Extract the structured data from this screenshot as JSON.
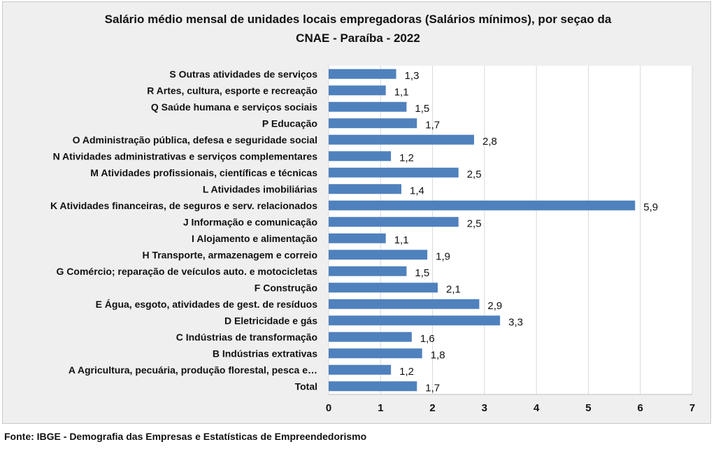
{
  "title_line1": "Salário médio mensal de unidades locais empregadoras (Salários mínimos), por seçao da",
  "title_line2": "CNAE -  Paraíba - 2022",
  "source": "Fonte: IBGE - Demografia das Empresas e Estatísticas de Empreendedorismo",
  "chart_data": {
    "type": "bar",
    "orientation": "horizontal",
    "title": "Salário médio mensal de unidades locais empregadoras (Salários mínimos), por seçao da CNAE -  Paraíba - 2022",
    "xlabel": "",
    "ylabel": "",
    "xlim": [
      0,
      7
    ],
    "xticks": [
      0,
      1,
      2,
      3,
      4,
      5,
      6,
      7
    ],
    "grid": "vertical",
    "bar_color": "#4f81bd",
    "categories": [
      "S Outras atividades de serviços",
      "R Artes, cultura, esporte e recreação",
      "Q Saúde humana e serviços sociais",
      "P Educação",
      "O Administração pública, defesa e seguridade social",
      "N Atividades administrativas e serviços complementares",
      "M Atividades profissionais, científicas e técnicas",
      "L Atividades imobiliárias",
      "K Atividades financeiras, de seguros e serv. relacionados",
      "J Informação e comunicação",
      "I Alojamento e alimentação",
      "H Transporte, armazenagem e correio",
      "G Comércio; reparação de veículos auto. e motocicletas",
      "F Construção",
      "E Água, esgoto, atividades de gest. de resíduos",
      "D Eletricidade e gás",
      "C Indústrias de transformação",
      "B Indústrias extrativas",
      "A Agricultura, pecuária, produção florestal, pesca e…",
      "Total"
    ],
    "values": [
      1.3,
      1.1,
      1.5,
      1.7,
      2.8,
      1.2,
      2.5,
      1.4,
      5.9,
      2.5,
      1.1,
      1.9,
      1.5,
      2.1,
      2.9,
      3.3,
      1.6,
      1.8,
      1.2,
      1.7
    ],
    "value_labels": [
      "1,3",
      "1,1",
      "1,5",
      "1,7",
      "2,8",
      "1,2",
      "2,5",
      "1,4",
      "5,9",
      "2,5",
      "1,1",
      "1,9",
      "1,5",
      "2,1",
      "2,9",
      "3,3",
      "1,6",
      "1,8",
      "1,2",
      "1,7"
    ]
  }
}
